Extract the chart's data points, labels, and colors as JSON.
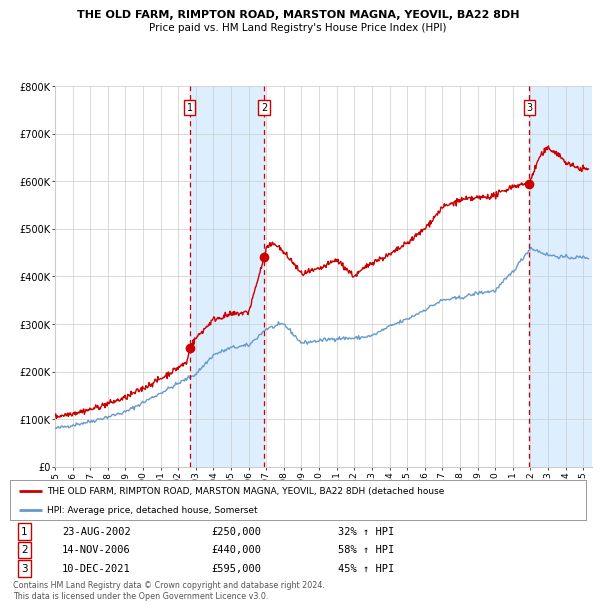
{
  "title": "THE OLD FARM, RIMPTON ROAD, MARSTON MAGNA, YEOVIL, BA22 8DH",
  "subtitle": "Price paid vs. HM Land Registry's House Price Index (HPI)",
  "ylim": [
    0,
    800000
  ],
  "yticks": [
    0,
    100000,
    200000,
    300000,
    400000,
    500000,
    600000,
    700000,
    800000
  ],
  "ytick_labels": [
    "£0",
    "£100K",
    "£200K",
    "£300K",
    "£400K",
    "£500K",
    "£600K",
    "£700K",
    "£800K"
  ],
  "xlim_start": 1995.0,
  "xlim_end": 2025.5,
  "sale_dates": [
    2002.646,
    2006.873,
    2021.942
  ],
  "sale_prices": [
    250000,
    440000,
    595000
  ],
  "sale_labels": [
    "1",
    "2",
    "3"
  ],
  "sale_info": [
    {
      "num": "1",
      "date": "23-AUG-2002",
      "price": "£250,000",
      "hpi": "32% ↑ HPI"
    },
    {
      "num": "2",
      "date": "14-NOV-2006",
      "price": "£440,000",
      "hpi": "58% ↑ HPI"
    },
    {
      "num": "3",
      "date": "10-DEC-2021",
      "price": "£595,000",
      "hpi": "45% ↑ HPI"
    }
  ],
  "legend_red": "THE OLD FARM, RIMPTON ROAD, MARSTON MAGNA, YEOVIL, BA22 8DH (detached house",
  "legend_blue": "HPI: Average price, detached house, Somerset",
  "footer": "Contains HM Land Registry data © Crown copyright and database right 2024.\nThis data is licensed under the Open Government Licence v3.0.",
  "red_color": "#cc0000",
  "blue_color": "#6699cc",
  "shade_color": "#ddeeff",
  "grid_color": "#cccccc",
  "bg_color": "#ffffff"
}
